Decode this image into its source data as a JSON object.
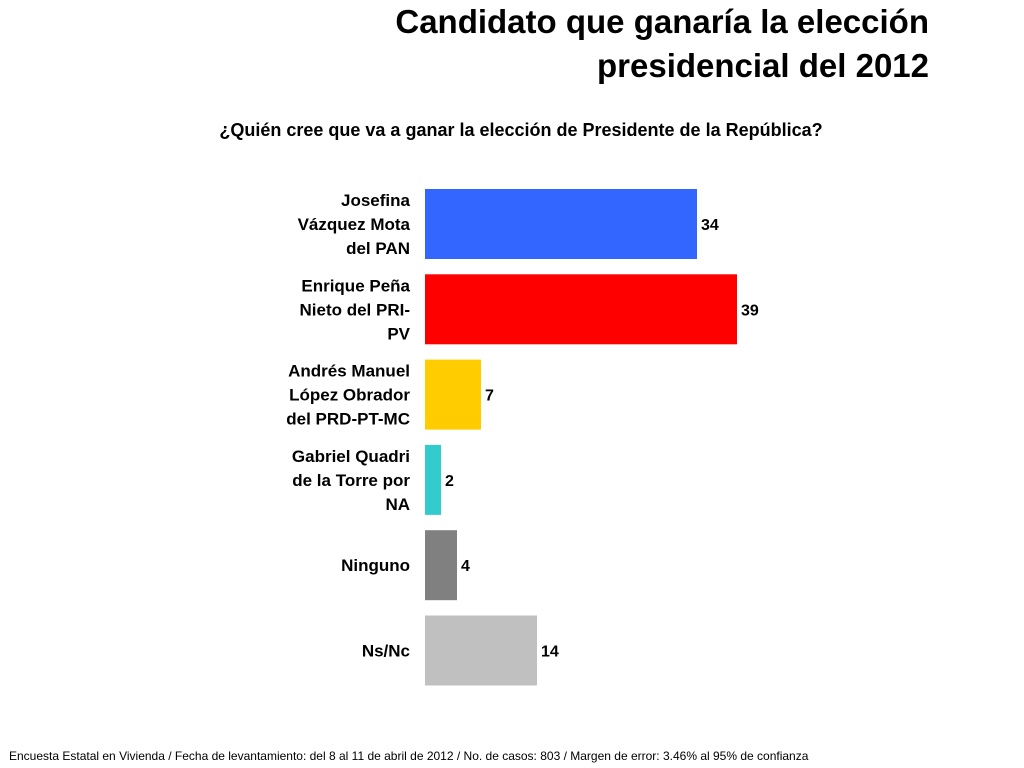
{
  "title_lines": [
    "Candidato que ganaría la elección",
    "presidencial del 2012"
  ],
  "question": "¿Quién cree que va a ganar la elección de Presidente de la República?",
  "footnote": "Encuesta Estatal en Vivienda / Fecha de levantamiento: del  8 al 11 de abril de 2012 / No. de casos: 803 / Margen de error: 3.46% al 95% de confianza",
  "chart_data": {
    "type": "bar",
    "orientation": "horizontal",
    "categories": [
      [
        "Josefina",
        "Vázquez Mota",
        "del PAN"
      ],
      [
        "Enrique Peña",
        "Nieto del PRI-",
        "PV"
      ],
      [
        "Andrés Manuel",
        "López Obrador",
        "del PRD-PT-MC"
      ],
      [
        "Gabriel Quadri",
        "de la Torre por",
        "NA"
      ],
      [
        "Ninguno"
      ],
      [
        "Ns/Nc"
      ]
    ],
    "values": [
      34,
      39,
      7,
      2,
      4,
      14
    ],
    "colors": [
      "#3366FF",
      "#FF0000",
      "#FFCC00",
      "#33CCCC",
      "#808080",
      "#C0C0C0"
    ],
    "data_labels": [
      "34",
      "39",
      "7",
      "2",
      "4",
      "14"
    ],
    "grid": false,
    "legend": "none"
  }
}
